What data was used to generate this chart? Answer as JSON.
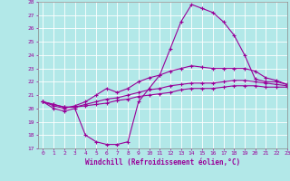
{
  "xlabel": "Windchill (Refroidissement éolien,°C)",
  "bg_color": "#b2e8e8",
  "grid_color": "#ffffff",
  "line_color": "#990099",
  "x_hours": [
    0,
    1,
    2,
    3,
    4,
    5,
    6,
    7,
    8,
    9,
    10,
    11,
    12,
    13,
    14,
    15,
    16,
    17,
    18,
    19,
    20,
    21,
    22,
    23
  ],
  "ylim": [
    17,
    28
  ],
  "xlim": [
    -0.5,
    23
  ],
  "line1": [
    20.5,
    20.0,
    19.8,
    20.0,
    18.0,
    17.5,
    17.3,
    17.3,
    17.5,
    20.5,
    21.5,
    22.5,
    24.5,
    26.5,
    27.8,
    27.5,
    27.2,
    26.5,
    25.5,
    24.0,
    22.2,
    22.0,
    22.0,
    21.8
  ],
  "line2": [
    20.5,
    20.2,
    20.0,
    20.2,
    20.5,
    21.0,
    21.5,
    21.2,
    21.5,
    22.0,
    22.3,
    22.5,
    22.8,
    23.0,
    23.2,
    23.1,
    23.0,
    23.0,
    23.0,
    23.0,
    22.8,
    22.3,
    22.1,
    21.8
  ],
  "line3": [
    20.5,
    20.3,
    20.1,
    20.1,
    20.3,
    20.5,
    20.7,
    20.8,
    21.0,
    21.2,
    21.4,
    21.5,
    21.7,
    21.8,
    21.9,
    21.9,
    21.9,
    22.0,
    22.1,
    22.1,
    22.0,
    21.9,
    21.8,
    21.7
  ],
  "line4": [
    20.5,
    20.3,
    20.1,
    20.1,
    20.2,
    20.3,
    20.4,
    20.6,
    20.7,
    20.9,
    21.0,
    21.1,
    21.2,
    21.4,
    21.5,
    21.5,
    21.5,
    21.6,
    21.7,
    21.7,
    21.7,
    21.6,
    21.6,
    21.6
  ]
}
